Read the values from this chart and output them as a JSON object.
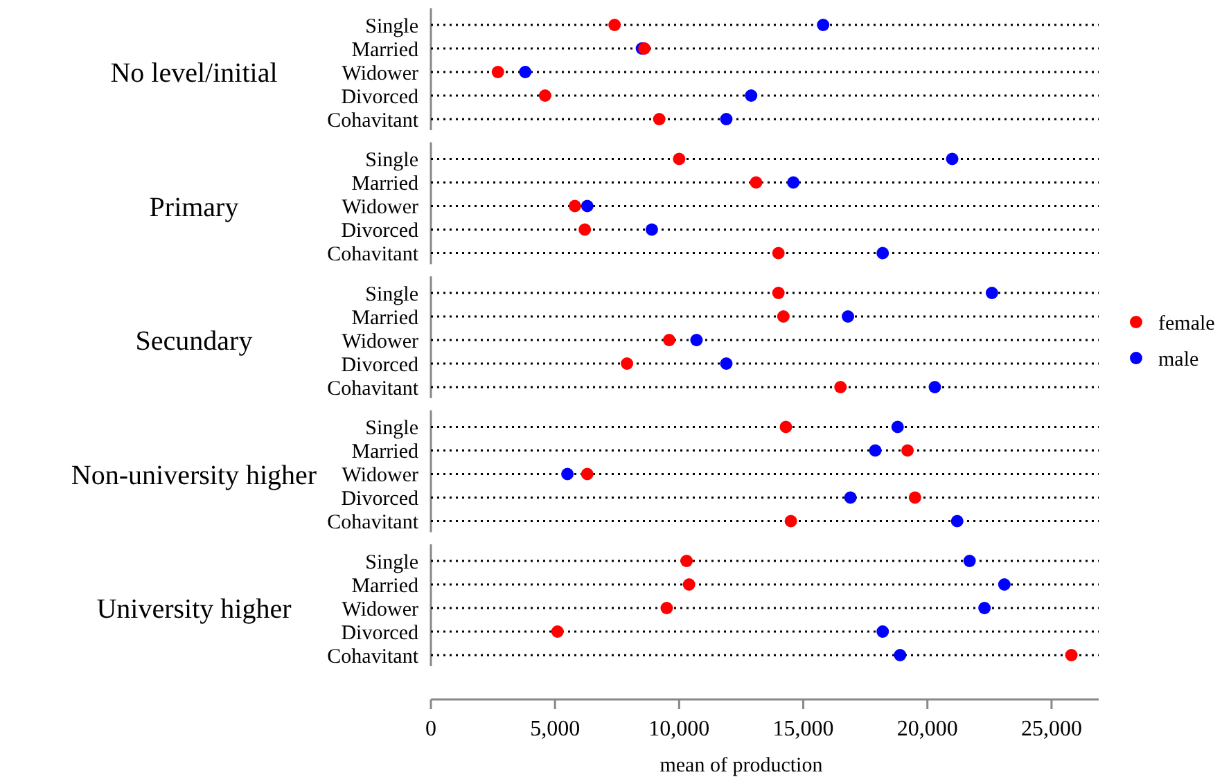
{
  "chart_data": [
    {
      "type": "scatter",
      "orientation": "horizontal",
      "title": "No level/initial",
      "categories": [
        "Single",
        "Married",
        "Widower",
        "Divorced",
        "Cohavitant"
      ],
      "series": [
        {
          "color": "#ff0000",
          "values": [
            7400,
            8600,
            2700,
            4600,
            9200
          ]
        },
        {
          "color": "#0000ff",
          "values": [
            15800,
            8500,
            3800,
            12900,
            11900
          ]
        }
      ],
      "xlim": [
        0,
        26900
      ],
      "tick_labels": "y",
      "grid": "y",
      "marker": "circle",
      "legend": false
    },
    {
      "type": "scatter",
      "orientation": "horizontal",
      "title": "Primary",
      "categories": [
        "Single",
        "Married",
        "Widower",
        "Divorced",
        "Cohavitant"
      ],
      "series": [
        {
          "color": "#ff0000",
          "values": [
            10000,
            13100,
            5800,
            6200,
            14000
          ]
        },
        {
          "color": "#0000ff",
          "values": [
            21000,
            14600,
            6300,
            8900,
            18200
          ]
        }
      ],
      "xlim": [
        0,
        26900
      ],
      "tick_labels": "y",
      "grid": "y",
      "marker": "circle",
      "legend": false
    },
    {
      "type": "scatter",
      "orientation": "horizontal",
      "title": "Secundary",
      "categories": [
        "Single",
        "Married",
        "Widower",
        "Divorced",
        "Cohavitant"
      ],
      "series": [
        {
          "name": "female",
          "color": "#ff0000",
          "values": [
            14000,
            14200,
            9600,
            7900,
            16500
          ]
        },
        {
          "name": "male",
          "color": "#0000ff",
          "values": [
            22600,
            16800,
            10700,
            11900,
            20300
          ]
        }
      ],
      "xlim": [
        0,
        26900
      ],
      "tick_labels": "y",
      "grid": "y",
      "marker": "circle",
      "legend": "right"
    },
    {
      "type": "scatter",
      "orientation": "horizontal",
      "title": "Non-university higher",
      "categories": [
        "Single",
        "Married",
        "Widower",
        "Divorced",
        "Cohavitant"
      ],
      "series": [
        {
          "color": "#ff0000",
          "values": [
            14300,
            19200,
            6300,
            19500,
            14500
          ]
        },
        {
          "color": "#0000ff",
          "values": [
            18800,
            17900,
            5500,
            16900,
            21200
          ]
        }
      ],
      "xlim": [
        0,
        26900
      ],
      "tick_labels": "y",
      "grid": "y",
      "marker": "circle",
      "legend": false
    },
    {
      "type": "scatter",
      "orientation": "horizontal",
      "title": "University higher",
      "xlabel": "mean of production",
      "categories": [
        "Single",
        "Married",
        "Widower",
        "Divorced",
        "Cohavitant"
      ],
      "series": [
        {
          "color": "#ff0000",
          "values": [
            10300,
            10400,
            9500,
            5100,
            25800
          ]
        },
        {
          "color": "#0000ff",
          "values": [
            21700,
            23100,
            22300,
            18200,
            18900
          ]
        }
      ],
      "xlim": [
        0,
        26900
      ],
      "xticks": [
        0,
        {
          "value": 5000,
          "label": "5,000"
        },
        {
          "value": 10000,
          "label": "10,000"
        },
        {
          "value": 15000,
          "label": "15,000"
        },
        {
          "value": 20000,
          "label": "20,000"
        },
        {
          "value": 25000,
          "label": "25,000"
        }
      ],
      "grid": "y",
      "marker": "circle",
      "legend": false
    }
  ]
}
